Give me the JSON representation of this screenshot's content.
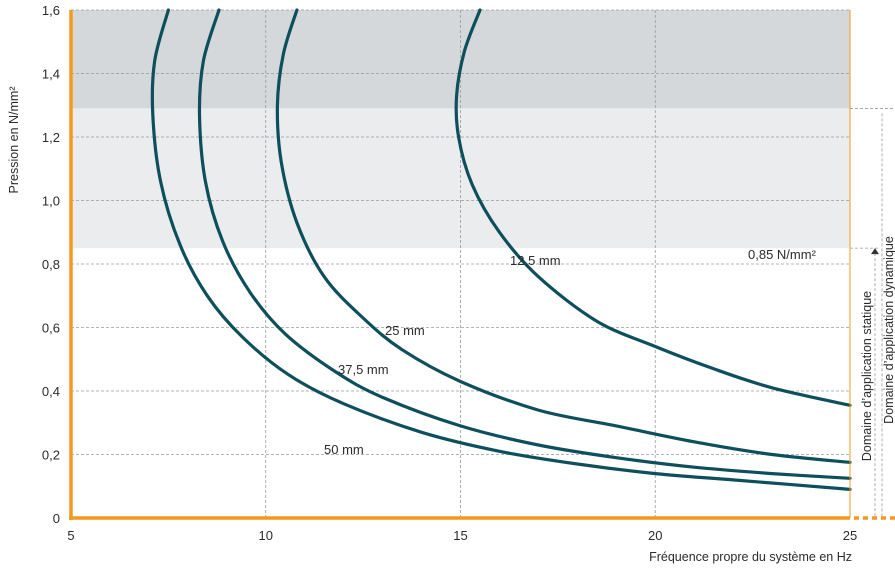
{
  "chart_data": {
    "type": "line",
    "xlabel": "Fréquence propre du système en Hz",
    "ylabel": "Pression en N/mm²",
    "xlim": [
      5,
      25
    ],
    "ylim": [
      0,
      1.6
    ],
    "x_ticks": [
      "5",
      "10",
      "15",
      "20",
      "25"
    ],
    "y_ticks": [
      "0",
      "0,2",
      "0,4",
      "0,6",
      "0,8",
      "1,0",
      "1,2",
      "1,4",
      "1,6"
    ],
    "grid": true,
    "regions": [
      {
        "name": "Domaine d’application statique",
        "y_range": [
          0,
          0.85
        ],
        "fill": "#ffffff"
      },
      {
        "name": "Domaine d’application dynamique",
        "y_range": [
          0,
          1.29
        ],
        "fill": "#ffffff"
      },
      {
        "y_range": [
          0.85,
          1.29
        ],
        "fill": "#ebecee"
      },
      {
        "y_range": [
          1.29,
          1.6
        ],
        "fill": "#d5d8db"
      }
    ],
    "threshold_label": "0,85 N/mm²",
    "series": [
      {
        "name": "12,5 mm",
        "color": "#0d4f5c",
        "points": [
          [
            15.5,
            1.6
          ],
          [
            15.1,
            1.47
          ],
          [
            14.9,
            1.33
          ],
          [
            14.95,
            1.2
          ],
          [
            15.3,
            1.05
          ],
          [
            16.0,
            0.9
          ],
          [
            17.0,
            0.76
          ],
          [
            18.5,
            0.62
          ],
          [
            20.0,
            0.54
          ],
          [
            21.5,
            0.47
          ],
          [
            23.0,
            0.41
          ],
          [
            25.0,
            0.355
          ]
        ]
      },
      {
        "name": "25 mm",
        "color": "#0d4f5c",
        "points": [
          [
            10.8,
            1.6
          ],
          [
            10.45,
            1.46
          ],
          [
            10.3,
            1.3
          ],
          [
            10.4,
            1.12
          ],
          [
            10.8,
            0.93
          ],
          [
            11.5,
            0.76
          ],
          [
            12.5,
            0.63
          ],
          [
            13.5,
            0.53
          ],
          [
            15.0,
            0.43
          ],
          [
            17.0,
            0.34
          ],
          [
            19.0,
            0.29
          ],
          [
            21.0,
            0.24
          ],
          [
            23.0,
            0.2
          ],
          [
            25.0,
            0.175
          ]
        ]
      },
      {
        "name": "37,5 mm",
        "color": "#0d4f5c",
        "points": [
          [
            8.8,
            1.6
          ],
          [
            8.4,
            1.44
          ],
          [
            8.3,
            1.27
          ],
          [
            8.45,
            1.06
          ],
          [
            8.9,
            0.87
          ],
          [
            9.6,
            0.71
          ],
          [
            10.5,
            0.58
          ],
          [
            11.8,
            0.46
          ],
          [
            13.0,
            0.38
          ],
          [
            15.0,
            0.29
          ],
          [
            17.0,
            0.23
          ],
          [
            19.0,
            0.19
          ],
          [
            21.0,
            0.16
          ],
          [
            23.0,
            0.14
          ],
          [
            25.0,
            0.125
          ]
        ]
      },
      {
        "name": "50 mm",
        "color": "#0d4f5c",
        "points": [
          [
            7.5,
            1.6
          ],
          [
            7.15,
            1.44
          ],
          [
            7.1,
            1.27
          ],
          [
            7.3,
            1.06
          ],
          [
            7.8,
            0.86
          ],
          [
            8.5,
            0.7
          ],
          [
            9.4,
            0.57
          ],
          [
            10.6,
            0.45
          ],
          [
            12.0,
            0.36
          ],
          [
            14.0,
            0.27
          ],
          [
            16.0,
            0.21
          ],
          [
            18.0,
            0.17
          ],
          [
            20.0,
            0.14
          ],
          [
            22.0,
            0.12
          ],
          [
            25.0,
            0.09
          ]
        ]
      }
    ],
    "series_labels": [
      "12,5 mm",
      "25 mm",
      "37,5 mm",
      "50 mm"
    ]
  }
}
